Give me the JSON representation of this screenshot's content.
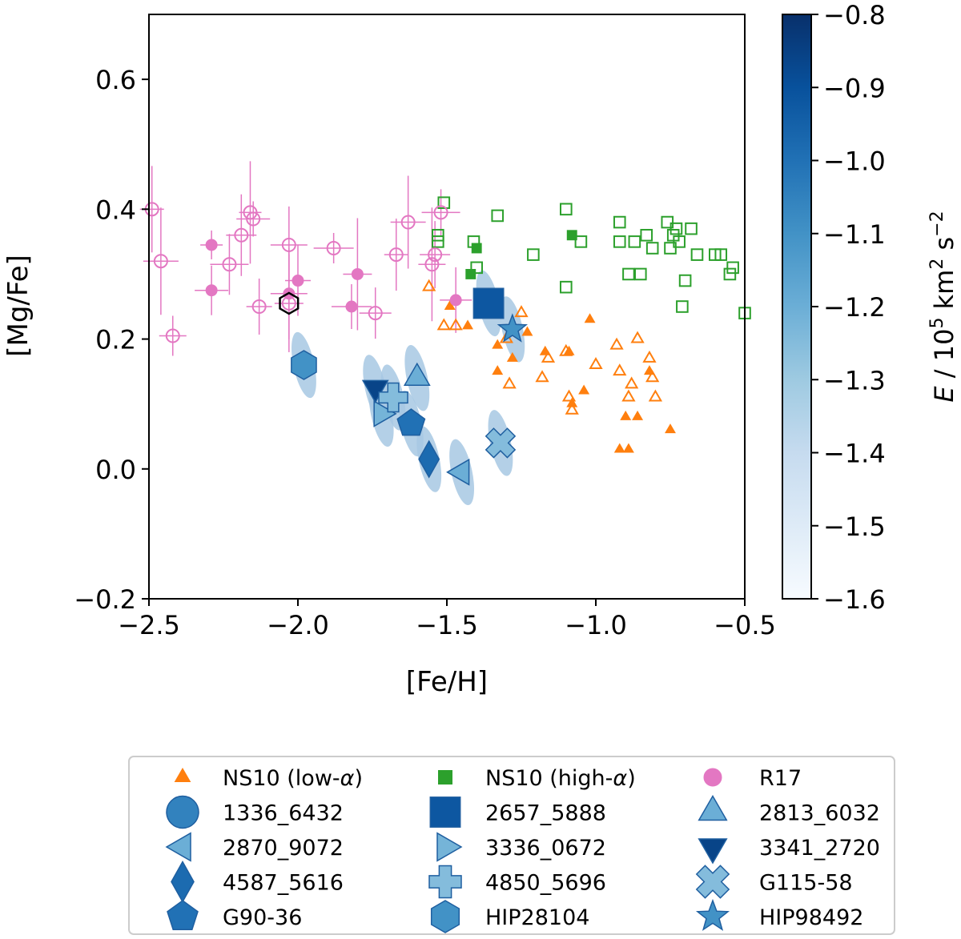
{
  "chart_data": {
    "type": "scatter",
    "xlabel": "[Fe/H]",
    "ylabel": "[Mg/Fe]",
    "xlim": [
      -2.5,
      -0.5
    ],
    "ylim": [
      -0.2,
      0.7
    ],
    "xticks": [
      -2.5,
      -2.0,
      -1.5,
      -1.0,
      -0.5
    ],
    "xtick_labels": [
      "−2.5",
      "−2.0",
      "−1.5",
      "−1.0",
      "−0.5"
    ],
    "yticks": [
      -0.2,
      0.0,
      0.2,
      0.4,
      0.6
    ],
    "ytick_labels": [
      "−0.2",
      "0.0",
      "0.2",
      "0.4",
      "0.6"
    ],
    "colorbar": {
      "label_prefix": "E",
      "label_rest": " / 10",
      "label_exp1": "5",
      "label_units": " km",
      "label_exp2": "2",
      "label_s": " s",
      "label_exp3": "−2",
      "range": [
        -1.6,
        -0.8
      ],
      "ticks": [
        -0.8,
        -0.9,
        -1.0,
        -1.1,
        -1.2,
        -1.3,
        -1.4,
        -1.5,
        -1.6
      ],
      "tick_labels": [
        "−0.8",
        "−0.9",
        "−1.0",
        "−1.1",
        "−1.2",
        "−1.3",
        "−1.4",
        "−1.5",
        "−1.6"
      ],
      "colormap": "Blues",
      "colors": [
        "#f7fbff",
        "#deebf7",
        "#c6dbef",
        "#9ecae1",
        "#6baed6",
        "#4292c6",
        "#2171b5",
        "#08519c",
        "#08306b"
      ]
    },
    "colors": {
      "ns10_low": "#ff7f0e",
      "ns10_high": "#2ca02c",
      "r17": "#e377c2",
      "ellipse": "#a7c8e3"
    },
    "series": [
      {
        "name": "NS10 (low-α)",
        "legend_name": "NS10 (low-",
        "legend_greek": "α",
        "legend_close": ")",
        "marker": "triangle",
        "color": "#ff7f0e",
        "filled": [
          [
            -1.49,
            0.25
          ],
          [
            -1.43,
            0.22
          ],
          [
            -1.33,
            0.19
          ],
          [
            -1.33,
            0.15
          ],
          [
            -1.28,
            0.17
          ],
          [
            -1.23,
            0.21
          ],
          [
            -1.17,
            0.18
          ],
          [
            -1.09,
            0.18
          ],
          [
            -1.08,
            0.1
          ],
          [
            -1.04,
            0.12
          ],
          [
            -1.02,
            0.23
          ],
          [
            -0.92,
            0.03
          ],
          [
            -0.9,
            0.08
          ],
          [
            -0.89,
            0.03
          ],
          [
            -0.86,
            0.08
          ],
          [
            -0.82,
            0.15
          ],
          [
            -0.75,
            0.06
          ]
        ],
        "open": [
          [
            -1.56,
            0.28
          ],
          [
            -1.51,
            0.22
          ],
          [
            -1.47,
            0.22
          ],
          [
            -1.3,
            0.2
          ],
          [
            -1.29,
            0.13
          ],
          [
            -1.25,
            0.24
          ],
          [
            -1.18,
            0.14
          ],
          [
            -1.16,
            0.17
          ],
          [
            -1.1,
            0.18
          ],
          [
            -1.09,
            0.11
          ],
          [
            -1.08,
            0.09
          ],
          [
            -1.0,
            0.16
          ],
          [
            -0.93,
            0.19
          ],
          [
            -0.92,
            0.15
          ],
          [
            -0.88,
            0.13
          ],
          [
            -0.86,
            0.2
          ],
          [
            -0.82,
            0.17
          ],
          [
            -0.81,
            0.14
          ],
          [
            -0.8,
            0.11
          ],
          [
            -0.89,
            0.11
          ]
        ]
      },
      {
        "name": "NS10 (high-α)",
        "legend_name": "NS10 (high-",
        "legend_greek": "α",
        "legend_close": ")",
        "marker": "square",
        "color": "#2ca02c",
        "filled": [
          [
            -1.4,
            0.34
          ],
          [
            -1.42,
            0.3
          ],
          [
            -1.08,
            0.36
          ]
        ],
        "open": [
          [
            -1.53,
            0.35
          ],
          [
            -1.51,
            0.41
          ],
          [
            -1.53,
            0.36
          ],
          [
            -1.41,
            0.35
          ],
          [
            -1.4,
            0.31
          ],
          [
            -1.33,
            0.39
          ],
          [
            -1.21,
            0.33
          ],
          [
            -1.1,
            0.4
          ],
          [
            -1.1,
            0.28
          ],
          [
            -1.05,
            0.35
          ],
          [
            -0.92,
            0.38
          ],
          [
            -0.92,
            0.35
          ],
          [
            -0.89,
            0.3
          ],
          [
            -0.87,
            0.35
          ],
          [
            -0.85,
            0.3
          ],
          [
            -0.83,
            0.36
          ],
          [
            -0.81,
            0.34
          ],
          [
            -0.76,
            0.38
          ],
          [
            -0.75,
            0.34
          ],
          [
            -0.74,
            0.36
          ],
          [
            -0.73,
            0.37
          ],
          [
            -0.72,
            0.35
          ],
          [
            -0.71,
            0.25
          ],
          [
            -0.7,
            0.29
          ],
          [
            -0.68,
            0.37
          ],
          [
            -0.66,
            0.33
          ],
          [
            -0.6,
            0.33
          ],
          [
            -0.58,
            0.33
          ],
          [
            -0.55,
            0.3
          ],
          [
            -0.54,
            0.31
          ],
          [
            -0.5,
            0.24
          ]
        ]
      },
      {
        "name": "R17",
        "marker": "circle",
        "color": "#e377c2",
        "filled": [
          [
            -2.29,
            0.345
          ],
          [
            -2.29,
            0.275
          ],
          [
            -2.0,
            0.29
          ],
          [
            -2.03,
            0.27
          ],
          [
            -1.8,
            0.3
          ],
          [
            -1.82,
            0.25
          ],
          [
            -1.47,
            0.26
          ]
        ],
        "open": [
          [
            -2.49,
            0.4
          ],
          [
            -2.46,
            0.32
          ],
          [
            -2.42,
            0.205
          ],
          [
            -2.23,
            0.315
          ],
          [
            -2.19,
            0.36
          ],
          [
            -2.16,
            0.395
          ],
          [
            -2.15,
            0.385
          ],
          [
            -2.13,
            0.25
          ],
          [
            -2.03,
            0.345
          ],
          [
            -2.03,
            0.255
          ],
          [
            -1.88,
            0.34
          ],
          [
            -1.74,
            0.24
          ],
          [
            -1.67,
            0.33
          ],
          [
            -1.63,
            0.38
          ],
          [
            -1.55,
            0.315
          ],
          [
            -1.52,
            0.395
          ],
          [
            -1.54,
            0.33
          ]
        ]
      }
    ],
    "stars": [
      {
        "name": "1336_6432",
        "marker": "circle",
        "energy": -1.05,
        "feh": null,
        "mgfe": null
      },
      {
        "name": "2657_5888",
        "marker": "square",
        "energy": -0.92,
        "feh": -1.36,
        "mgfe": 0.255
      },
      {
        "name": "2813_6032",
        "marker": "triangle-up",
        "energy": -1.2,
        "feh": -1.6,
        "mgfe": 0.14
      },
      {
        "name": "2870_9072",
        "marker": "triangle-left",
        "energy": -1.2,
        "feh": -1.45,
        "mgfe": -0.005
      },
      {
        "name": "3336_0672",
        "marker": "triangle-right",
        "energy": -1.22,
        "feh": -1.72,
        "mgfe": 0.085
      },
      {
        "name": "3341_2720",
        "marker": "triangle-down",
        "energy": -0.86,
        "feh": -1.74,
        "mgfe": 0.125
      },
      {
        "name": "4587_5616",
        "marker": "diamond",
        "energy": -0.98,
        "feh": -1.56,
        "mgfe": 0.015
      },
      {
        "name": "4850_5696",
        "marker": "plus",
        "energy": -1.25,
        "feh": -1.68,
        "mgfe": 0.11
      },
      {
        "name": "G115-58",
        "marker": "x",
        "energy": -1.25,
        "feh": -1.32,
        "mgfe": 0.04
      },
      {
        "name": "G90-36",
        "marker": "pentagon",
        "energy": -1.0,
        "feh": -1.62,
        "mgfe": 0.07
      },
      {
        "name": "HIP28104",
        "marker": "hexagon",
        "energy": -1.1,
        "feh": -1.98,
        "mgfe": 0.16
      },
      {
        "name": "HIP98492",
        "marker": "star",
        "energy": -1.1,
        "feh": -1.28,
        "mgfe": 0.215
      }
    ],
    "special": {
      "name": "open-hexagon",
      "feh": -2.03,
      "mgfe": 0.255
    }
  }
}
